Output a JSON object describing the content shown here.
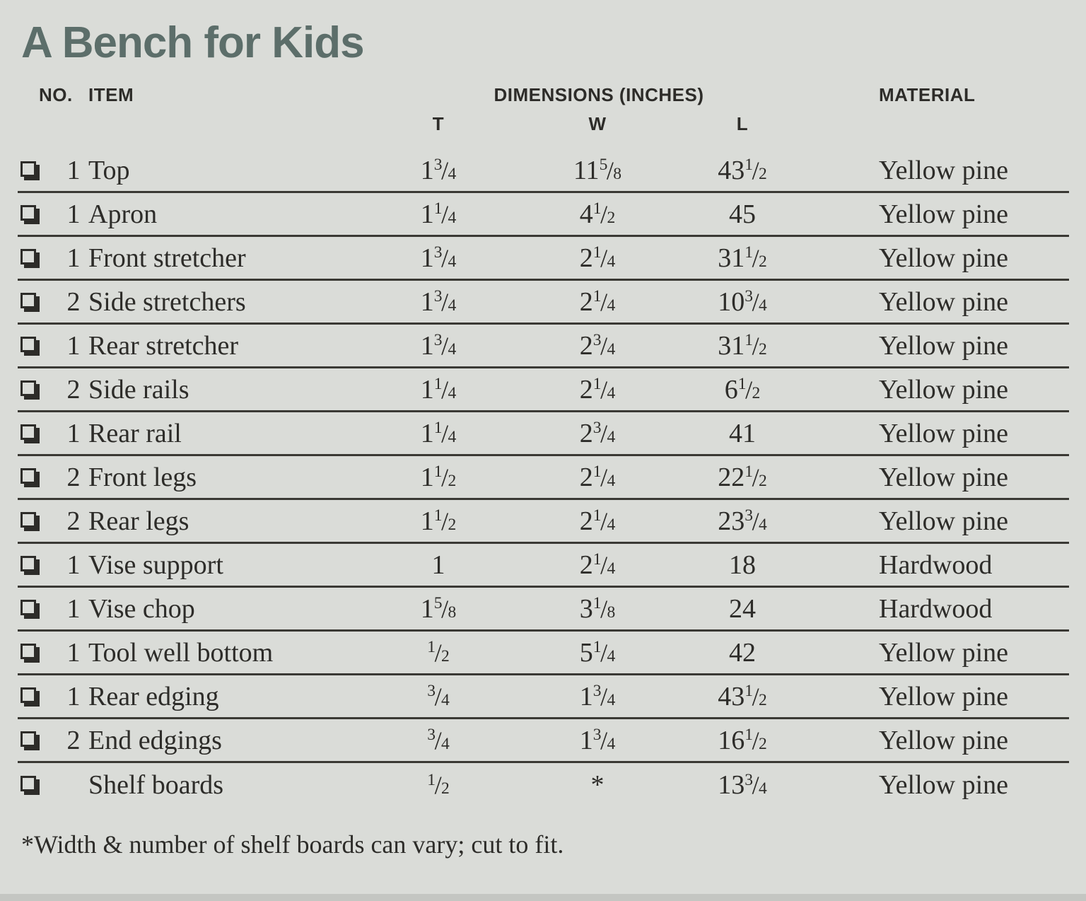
{
  "page": {
    "title": "A Bench for Kids",
    "footnote": "*Width & number of shelf boards can vary; cut to fit."
  },
  "colors": {
    "background": "#dadcd8",
    "title": "#5c6e6a",
    "text": "#2d2c29",
    "rule": "#3a3934",
    "bottom_edge": "#c4c6c2"
  },
  "icons": {
    "checkbox": "lower-right-shadowed-white-square"
  },
  "table": {
    "headers": {
      "no": "NO.",
      "item": "ITEM",
      "dimensions": "DIMENSIONS (INCHES)",
      "t": "T",
      "w": "W",
      "l": "L",
      "material": "MATERIAL"
    },
    "rows": [
      {
        "no": "1",
        "item": "Top",
        "t": "1 3/4",
        "w": "11 5/8",
        "l": "43 1/2",
        "material": "Yellow pine"
      },
      {
        "no": "1",
        "item": "Apron",
        "t": "1 1/4",
        "w": "4 1/2",
        "l": "45",
        "material": "Yellow pine"
      },
      {
        "no": "1",
        "item": "Front stretcher",
        "t": "1 3/4",
        "w": "2 1/4",
        "l": "31 1/2",
        "material": "Yellow pine"
      },
      {
        "no": "2",
        "item": "Side stretchers",
        "t": "1 3/4",
        "w": "2 1/4",
        "l": "10 3/4",
        "material": "Yellow pine"
      },
      {
        "no": "1",
        "item": "Rear stretcher",
        "t": "1 3/4",
        "w": "2 3/4",
        "l": "31 1/2",
        "material": "Yellow pine"
      },
      {
        "no": "2",
        "item": "Side rails",
        "t": "1 1/4",
        "w": "2 1/4",
        "l": "6 1/2",
        "material": "Yellow pine"
      },
      {
        "no": "1",
        "item": "Rear rail",
        "t": "1 1/4",
        "w": "2 3/4",
        "l": "41",
        "material": "Yellow pine"
      },
      {
        "no": "2",
        "item": "Front legs",
        "t": "1 1/2",
        "w": "2 1/4",
        "l": "22 1/2",
        "material": "Yellow pine"
      },
      {
        "no": "2",
        "item": "Rear legs",
        "t": "1 1/2",
        "w": "2 1/4",
        "l": "23 3/4",
        "material": "Yellow pine"
      },
      {
        "no": "1",
        "item": "Vise support",
        "t": "1",
        "w": "2 1/4",
        "l": "18",
        "material": "Hardwood"
      },
      {
        "no": "1",
        "item": "Vise chop",
        "t": "1 5/8",
        "w": "3 1/8",
        "l": "24",
        "material": "Hardwood"
      },
      {
        "no": "1",
        "item": "Tool well bottom",
        "t": "1/2",
        "w": "5 1/4",
        "l": "42",
        "material": "Yellow pine"
      },
      {
        "no": "1",
        "item": "Rear edging",
        "t": "3/4",
        "w": "1 3/4",
        "l": "43 1/2",
        "material": "Yellow pine"
      },
      {
        "no": "2",
        "item": "End edgings",
        "t": "3/4",
        "w": "1 3/4",
        "l": "16 1/2",
        "material": "Yellow pine"
      },
      {
        "no": "",
        "item": "Shelf boards",
        "t": "1/2",
        "w": "*",
        "l": "13 3/4",
        "material": "Yellow pine"
      }
    ]
  }
}
